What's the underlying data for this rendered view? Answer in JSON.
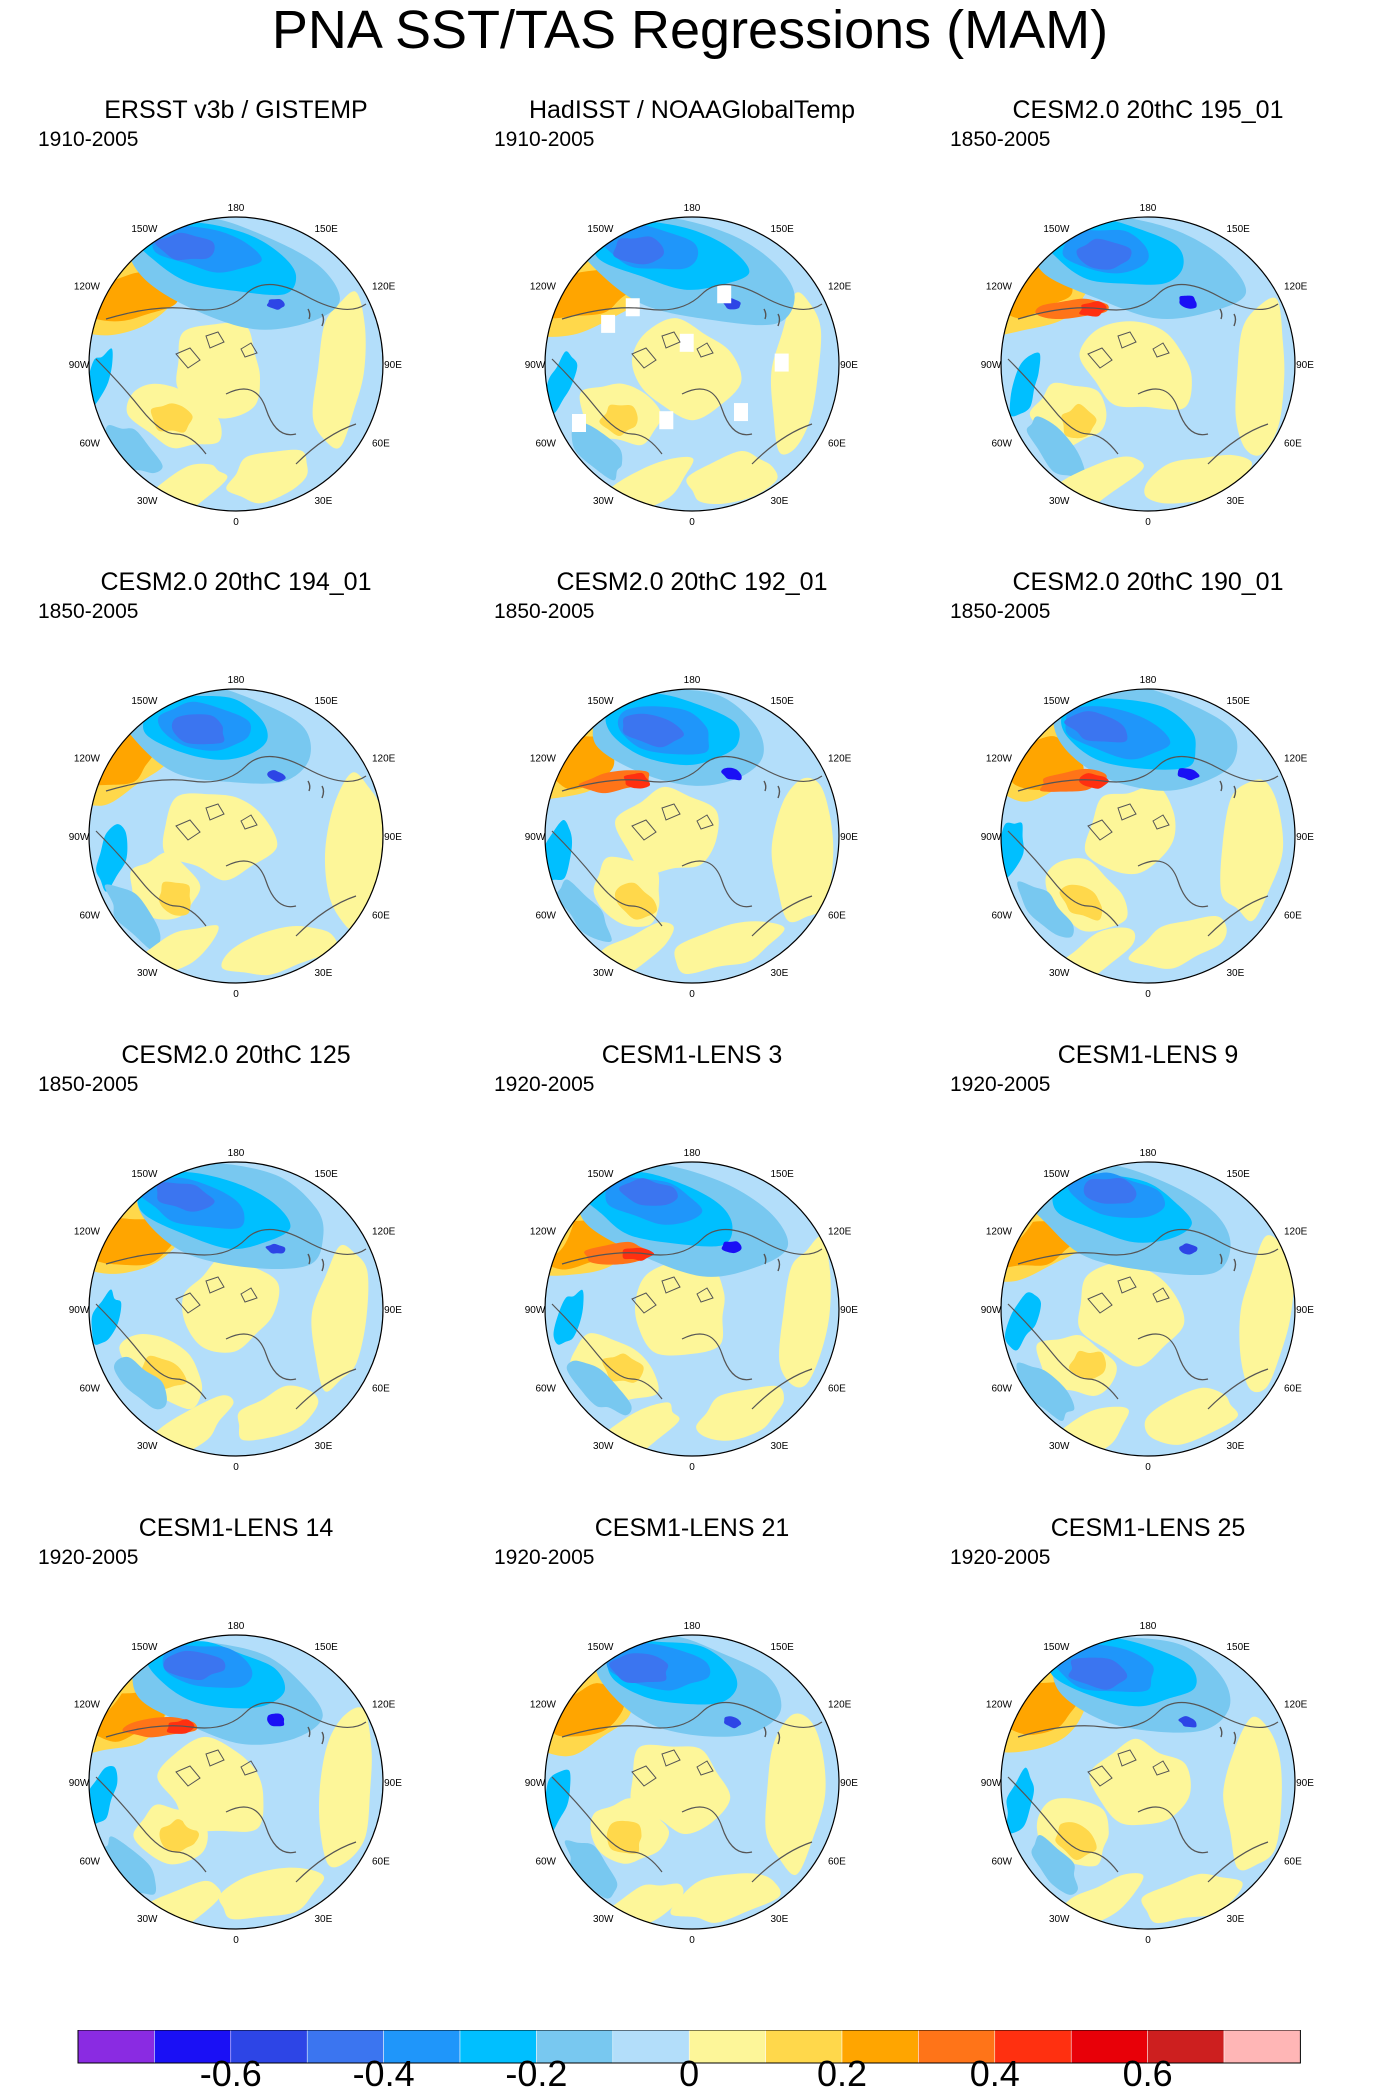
{
  "title": "PNA SST/TAS Regressions (MAM)",
  "longitude_labels": [
    {
      "text": "180",
      "lon": 180
    },
    {
      "text": "150W",
      "lon": -150
    },
    {
      "text": "150E",
      "lon": 150
    },
    {
      "text": "120W",
      "lon": -120
    },
    {
      "text": "120E",
      "lon": 120
    },
    {
      "text": "90W",
      "lon": -90
    },
    {
      "text": "90E",
      "lon": 90
    },
    {
      "text": "60W",
      "lon": -60
    },
    {
      "text": "60E",
      "lon": 60
    },
    {
      "text": "30W",
      "lon": -30
    },
    {
      "text": "30E",
      "lon": 30
    },
    {
      "text": "0",
      "lon": 0
    }
  ],
  "panels": [
    {
      "title": "ERSST v3b / GISTEMP",
      "period": "1910-2005"
    },
    {
      "title": "HadISST / NOAAGlobalTemp",
      "period": "1910-2005"
    },
    {
      "title": "CESM2.0 20thC 195_01",
      "period": "1850-2005"
    },
    {
      "title": "CESM2.0 20thC 194_01",
      "period": "1850-2005"
    },
    {
      "title": "CESM2.0 20thC 192_01",
      "period": "1850-2005"
    },
    {
      "title": "CESM2.0 20thC 190_01",
      "period": "1850-2005"
    },
    {
      "title": "CESM2.0 20thC 125",
      "period": "1850-2005"
    },
    {
      "title": "CESM1-LENS 3",
      "period": "1920-2005"
    },
    {
      "title": "CESM1-LENS 9",
      "period": "1920-2005"
    },
    {
      "title": "CESM1-LENS 14",
      "period": "1920-2005"
    },
    {
      "title": "CESM1-LENS 21",
      "period": "1920-2005"
    },
    {
      "title": "CESM1-LENS 25",
      "period": "1920-2005"
    }
  ],
  "colorbar": {
    "colors": [
      "#8a2be2",
      "#1a10f5",
      "#2d45e6",
      "#3b75f0",
      "#1f96fa",
      "#00bfff",
      "#78c8f0",
      "#b3defa",
      "#fdf699",
      "#ffd84b",
      "#ffa500",
      "#ff7418",
      "#ff3010",
      "#e80008",
      "#cd1f1f",
      "#ffb6b6"
    ],
    "labels": [
      "-0.6",
      "-0.4",
      "-0.2",
      "0",
      "0.2",
      "0.4",
      "0.6"
    ]
  }
}
